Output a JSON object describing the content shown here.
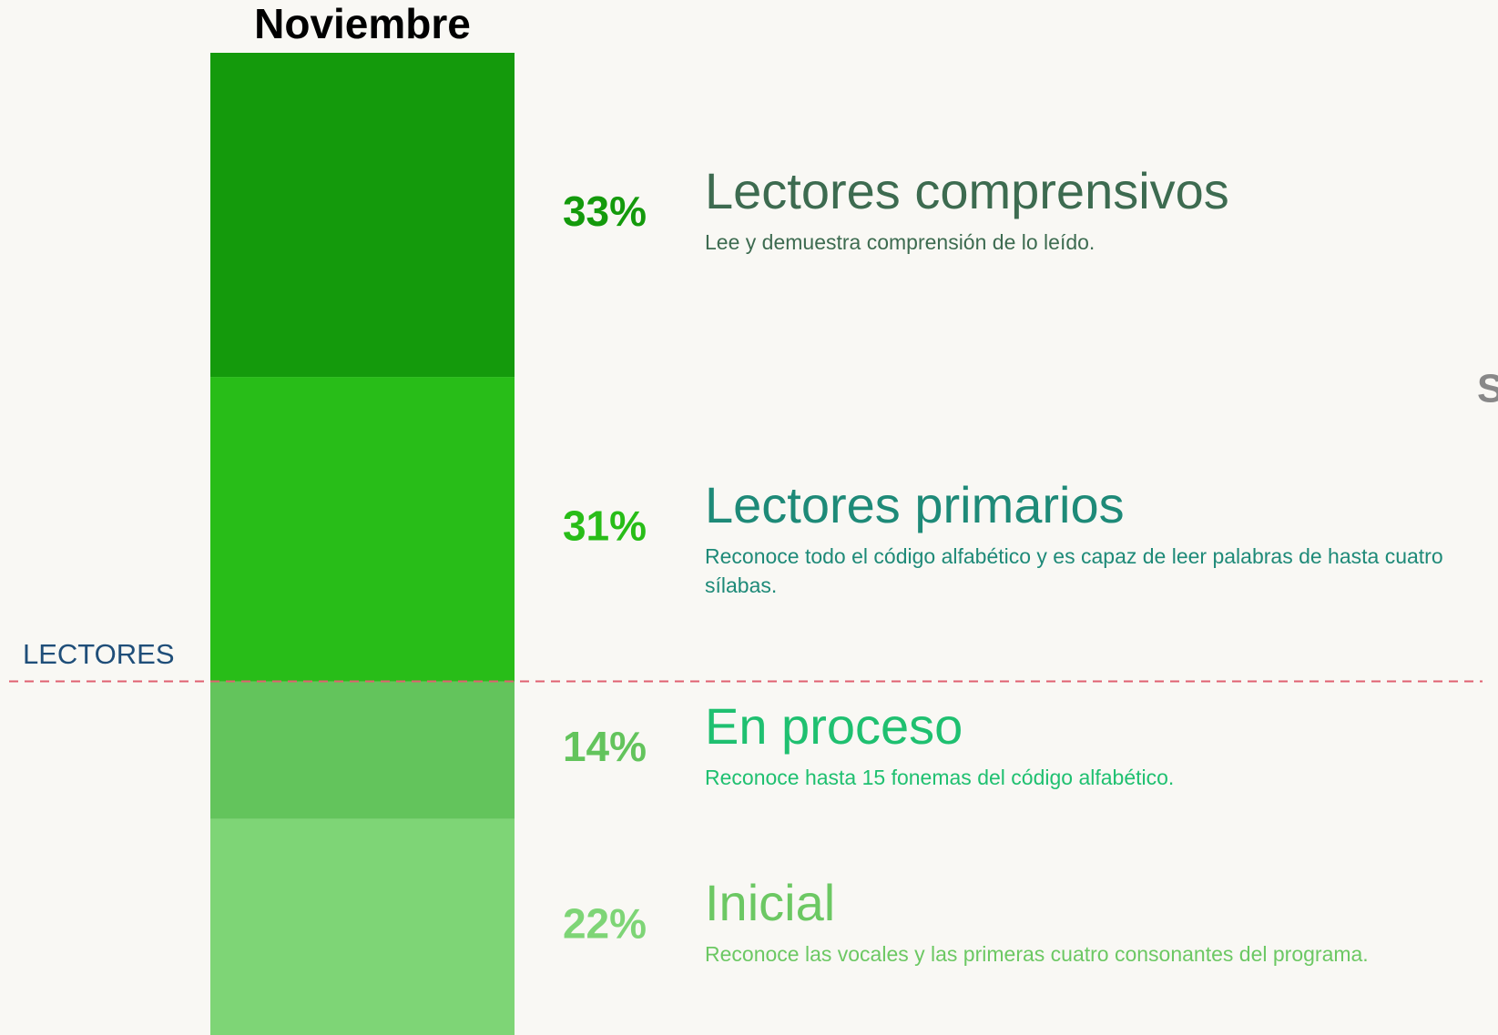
{
  "chart_data": {
    "type": "stacked_bar",
    "title": "Noviembre",
    "categories": [
      "Noviembre"
    ],
    "ylim": [
      0,
      100
    ],
    "threshold_label": "LECTORES",
    "edge_text": "S",
    "series": [
      {
        "name": "Inicial",
        "description": "Reconoce las vocales y las primeras cuatro consonantes del programa.",
        "color": "#7ed576",
        "text_color": "#6cc863",
        "values": [
          22
        ],
        "value_labels": [
          "22%"
        ]
      },
      {
        "name": "En proceso",
        "description": "Reconoce hasta 15 fonemas del código alfabético.",
        "color": "#63c45c",
        "text_color": "#1fc070",
        "values": [
          14
        ],
        "value_labels": [
          "14%"
        ]
      },
      {
        "name": "Lectores primarios",
        "description": "Reconoce todo el código alfabético y es capaz de leer palabras de hasta cuatro sílabas.",
        "color": "#28bd18",
        "text_color": "#1e8a78",
        "values": [
          31
        ],
        "value_labels": [
          "31%"
        ]
      },
      {
        "name": "Lectores comprensivos",
        "description": "Lee y demuestra comprensión de lo leído.",
        "color": "#149a0c",
        "text_color": "#3d6b50",
        "values": [
          33
        ],
        "value_labels": [
          "33%"
        ]
      }
    ]
  }
}
